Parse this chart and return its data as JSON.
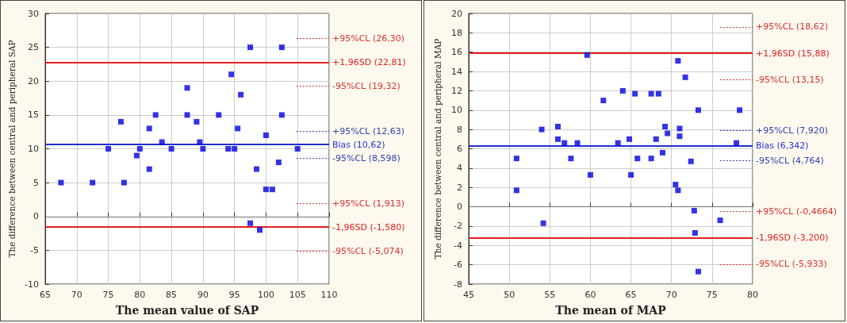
{
  "chart_data": [
    {
      "type": "scatter",
      "xlabel": "The mean value of SAP",
      "ylabel": "The difference between central and peripheral SAP",
      "xlim": [
        65,
        110
      ],
      "xticks": [
        65,
        70,
        75,
        80,
        85,
        90,
        95,
        100,
        105,
        110
      ],
      "ylim": [
        -10,
        30
      ],
      "yticks": [
        -10,
        -5,
        0,
        5,
        10,
        15,
        20,
        25,
        30
      ],
      "grid": true,
      "marker": "square",
      "series": [
        {
          "color": "#0000e0",
          "x": [
            67.5,
            72.5,
            75,
            77,
            77.5,
            79.5,
            80,
            81.5,
            81.5,
            82.5,
            83.5,
            85,
            87.5,
            87.5,
            89,
            89.5,
            90,
            92.5,
            94,
            94.5,
            95,
            95.5,
            96,
            97.5,
            97.5,
            98.5,
            99,
            100,
            100,
            101,
            102,
            102.5,
            102.5,
            105
          ],
          "values": [
            5,
            5,
            10,
            14,
            5,
            9,
            10,
            13,
            7,
            15,
            11,
            10,
            19,
            15,
            14,
            11,
            10,
            15,
            10,
            21,
            10,
            13,
            18,
            25,
            -1,
            7,
            -2,
            12,
            4,
            4,
            8,
            15,
            25,
            10
          ]
        }
      ],
      "ref_lines": [
        {
          "axis": "y",
          "value": 26.3,
          "label": "+95%CL (26,30)",
          "color": "#d83030",
          "line_style": "dotted"
        },
        {
          "axis": "y",
          "value": 22.81,
          "label": "+1,96SD (22,81)",
          "color": "#e02020",
          "line_style": "solid"
        },
        {
          "axis": "y",
          "value": 19.32,
          "label": "-95%CL (19,32)",
          "color": "#d83030",
          "line_style": "dotted"
        },
        {
          "axis": "y",
          "value": 12.63,
          "label": "+95%CL (12,63)",
          "color": "#3040b0",
          "line_style": "dotted"
        },
        {
          "axis": "y",
          "value": 10.62,
          "label": "Bias (10,62)",
          "color": "#2030d0",
          "line_style": "solid"
        },
        {
          "axis": "y",
          "value": 8.598,
          "label": "-95%CL (8,598)",
          "color": "#3040b0",
          "line_style": "dotted"
        },
        {
          "axis": "y",
          "value": 1.913,
          "label": "+95%CL (1,913)",
          "color": "#d83030",
          "line_style": "dotted"
        },
        {
          "axis": "y",
          "value": 0,
          "color": "#707070",
          "line_style": "solid"
        },
        {
          "axis": "y",
          "value": -1.58,
          "label": "-1,96SD (-1,580)",
          "color": "#e02020",
          "line_style": "solid"
        },
        {
          "axis": "y",
          "value": -5.074,
          "label": "-95%CL (-5,074)",
          "color": "#d83030",
          "line_style": "dotted"
        }
      ]
    },
    {
      "type": "scatter",
      "xlabel": "The mean of MAP",
      "ylabel": "The difference between central and peripheral MAP",
      "xlim": [
        45,
        80
      ],
      "xticks": [
        45,
        50,
        55,
        60,
        65,
        70,
        75,
        80
      ],
      "ylim": [
        -8,
        20
      ],
      "yticks": [
        -8,
        -6,
        -4,
        -2,
        0,
        2,
        4,
        6,
        8,
        10,
        12,
        14,
        16,
        18,
        20
      ],
      "grid": true,
      "marker": "square",
      "series": [
        {
          "color": "#0000e0",
          "x": [
            50.9,
            50.9,
            54,
            54.2,
            56,
            56,
            56.8,
            57.6,
            58.4,
            59.6,
            60,
            61.6,
            63.4,
            64,
            64.8,
            65,
            65.5,
            65.8,
            67.5,
            67.5,
            68.1,
            68.4,
            68.9,
            69.2,
            69.5,
            70.5,
            70.8,
            70.8,
            71,
            71,
            71.7,
            72.4,
            72.8,
            72.9,
            73.3,
            73.3,
            76,
            78,
            78.4
          ],
          "values": [
            5,
            1.7,
            8,
            -1.7,
            8.3,
            7,
            6.6,
            5,
            6.6,
            15.7,
            3.3,
            11,
            6.6,
            12,
            7,
            3.3,
            11.7,
            5,
            11.7,
            5,
            7,
            11.7,
            5.6,
            8.3,
            7.6,
            2.3,
            1.7,
            15.1,
            8.1,
            7.3,
            13.4,
            4.7,
            -0.4,
            -2.7,
            10,
            -6.7,
            -1.4,
            6.6,
            10
          ]
        }
      ],
      "ref_lines": [
        {
          "axis": "y",
          "value": 18.62,
          "label": "+95%CL (18,62)",
          "color": "#d83030",
          "line_style": "dotted"
        },
        {
          "axis": "y",
          "value": 15.88,
          "label": "+1,96SD (15,88)",
          "color": "#e02020",
          "line_style": "solid"
        },
        {
          "axis": "y",
          "value": 13.15,
          "label": "-95%CL (13,15)",
          "color": "#d83030",
          "line_style": "dotted"
        },
        {
          "axis": "y",
          "value": 7.92,
          "label": "+95%CL (7,920)",
          "color": "#3040b0",
          "line_style": "dotted"
        },
        {
          "axis": "y",
          "value": 6.342,
          "label": "Bias (6,342)",
          "color": "#2030d0",
          "line_style": "solid"
        },
        {
          "axis": "y",
          "value": 4.764,
          "label": "-95%CL (4,764)",
          "color": "#3040b0",
          "line_style": "dotted"
        },
        {
          "axis": "y",
          "value": 0,
          "color": "#707070",
          "line_style": "solid"
        },
        {
          "axis": "y",
          "value": -0.4664,
          "label": "+95%CL (-0,4664)",
          "color": "#d83030",
          "line_style": "dotted"
        },
        {
          "axis": "y",
          "value": -3.2,
          "label": "-1,96SD (-3,200)",
          "color": "#e02020",
          "line_style": "solid"
        },
        {
          "axis": "y",
          "value": -5.933,
          "label": "-95%CL (-5,933)",
          "color": "#d83030",
          "line_style": "dotted"
        }
      ]
    }
  ]
}
